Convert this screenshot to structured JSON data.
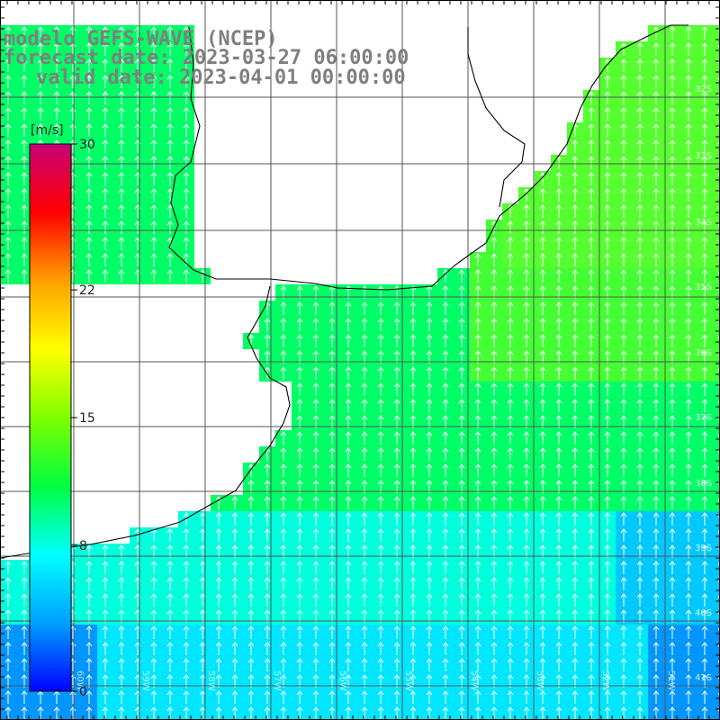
{
  "header": {
    "line1": "modelo GEFS-WAVE (NCEP)",
    "line2": "forecast date: 2023-03-27 06:00:00",
    "line3": "valid date: 2023-04-01 00:00:00"
  },
  "colorbar": {
    "unit": "[m/s]",
    "ticks": [
      "30",
      "22",
      "15",
      "8",
      "0"
    ],
    "tick_values": [
      30,
      22,
      15,
      8,
      0
    ],
    "range": [
      0,
      30
    ],
    "colors": [
      "#0000ff",
      "#00a0ff",
      "#00ffff",
      "#00ff40",
      "#7fff00",
      "#ffff00",
      "#ffa000",
      "#ff0000",
      "#c80078"
    ]
  },
  "map": {
    "lat_labels": [
      "32S",
      "33S",
      "34S",
      "35S",
      "36S",
      "37S",
      "38S",
      "39S",
      "40S",
      "41S"
    ],
    "lon_labels": [
      "60W",
      "59W",
      "58W",
      "57W",
      "56W",
      "55W",
      "54W",
      "53W",
      "52W",
      "51W"
    ],
    "wind_direction": "from south (arrows pointing north)",
    "colors": {
      "ocean_high": "#55ff30",
      "ocean_mid": "#00ff66",
      "ocean_low": "#00ffdd",
      "land": "#ffffff",
      "grid": "#555555",
      "coast": "#000000",
      "arrow": "#ffffff"
    }
  }
}
